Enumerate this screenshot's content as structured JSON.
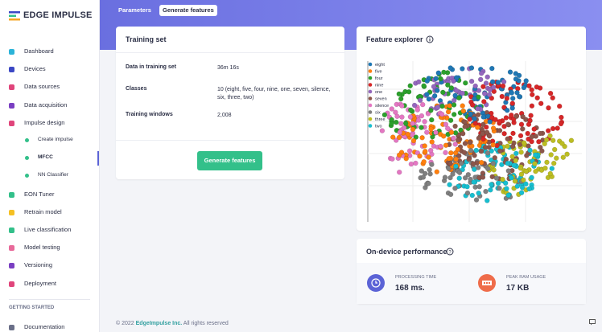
{
  "brand": "EDGE IMPULSE",
  "nav": {
    "items": [
      "Dashboard",
      "Devices",
      "Data sources",
      "Data acquisition",
      {
        "label": "Impulse design",
        "children": [
          "Create impulse",
          "MFCC",
          "NN Classifier"
        ]
      },
      "EON Tuner",
      "Retrain model",
      "Live classification",
      "Model testing",
      "Versioning",
      "Deployment"
    ],
    "section": "GETTING STARTED",
    "section_items": [
      "Documentation"
    ]
  },
  "tabs": [
    "Parameters",
    "Generate features"
  ],
  "training_set": {
    "title": "Training set",
    "rows": [
      [
        "Data in training set",
        "36m 16s"
      ],
      [
        "Classes",
        "10 (eight, five, four, nine, one, seven, silence, six, three, two)"
      ],
      [
        "Training windows",
        "2,008"
      ]
    ],
    "button": "Generate features"
  },
  "feature_explorer": {
    "title": "Feature explorer",
    "legend": [
      {
        "name": "eight",
        "color": "#1f77b4"
      },
      {
        "name": "five",
        "color": "#ff7f0e"
      },
      {
        "name": "four",
        "color": "#2ca02c"
      },
      {
        "name": "nine",
        "color": "#d62728"
      },
      {
        "name": "one",
        "color": "#9467bd"
      },
      {
        "name": "seven",
        "color": "#8c564b"
      },
      {
        "name": "silence",
        "color": "#e377c2"
      },
      {
        "name": "six",
        "color": "#7f7f7f"
      },
      {
        "name": "three",
        "color": "#bcbd22"
      },
      {
        "name": "two",
        "color": "#17becf"
      }
    ]
  },
  "performance": {
    "title": "On-device performance",
    "metrics": [
      {
        "label": "PROCESSING TIME",
        "value": "168 ms."
      },
      {
        "label": "PEAK RAM USAGE",
        "value": "17 KB"
      }
    ]
  },
  "footer": {
    "prefix": "© 2022",
    "link": "EdgeImpulse Inc.",
    "suffix": "All rights reserved"
  }
}
